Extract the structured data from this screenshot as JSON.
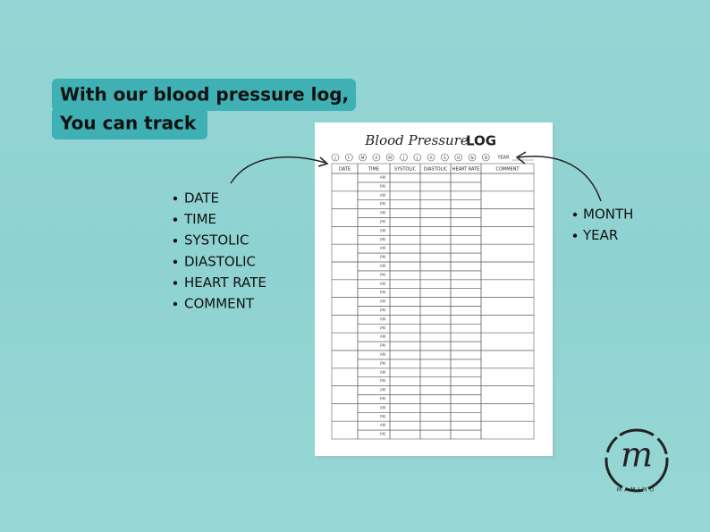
{
  "headline": {
    "line1": "With our blood pressure log,",
    "line2": "You can track"
  },
  "left_list": [
    "DATE",
    "TIME",
    "SYSTOLIC",
    "DIASTOLIC",
    "HEART RATE",
    "COMMENT"
  ],
  "right_list": [
    "MONTH",
    "YEAR"
  ],
  "sheet": {
    "title_script": "Blood Pressure",
    "title_bold": "LOG",
    "months": [
      "J",
      "F",
      "M",
      "A",
      "M",
      "J",
      "J",
      "A",
      "S",
      "O",
      "N",
      "D"
    ],
    "year_label": "YEAR",
    "columns": [
      "DATE",
      "TIME",
      "SYSTOLIC",
      "DIASTOLIC",
      "HEART RATE",
      "COMMENT"
    ],
    "rows": [
      [
        "AM",
        "PM"
      ],
      [
        "AM",
        "PM"
      ],
      [
        "AM",
        "PM"
      ],
      [
        "AM",
        "PM"
      ],
      [
        "AM",
        "PM"
      ],
      [
        "AM",
        "PM"
      ],
      [
        "AM",
        "PM"
      ],
      [
        "AM",
        "PM"
      ],
      [
        "AM",
        "PM"
      ],
      [
        "AM",
        "PM"
      ],
      [
        "AM",
        "PM"
      ],
      [
        "AM",
        "PM"
      ],
      [
        "AM",
        "PM"
      ],
      [
        "AM",
        "PM"
      ],
      [
        "AM",
        "PM"
      ]
    ]
  },
  "logo": {
    "mark": "m",
    "name": "MAMIMO"
  }
}
